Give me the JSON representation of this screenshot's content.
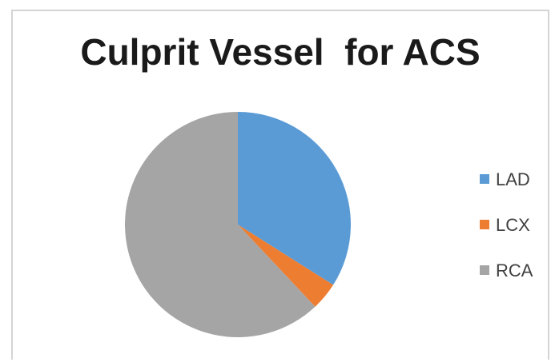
{
  "chart_data": {
    "type": "pie",
    "title": "Culprit Vessel  for ACS",
    "categories": [
      "LAD",
      "LCX",
      "RCA"
    ],
    "values": [
      34,
      4,
      62
    ],
    "colors": [
      "#5B9BD5",
      "#ED7D31",
      "#A5A5A5"
    ],
    "legend_position": "right",
    "start_angle_deg": 0,
    "direction": "clockwise"
  }
}
